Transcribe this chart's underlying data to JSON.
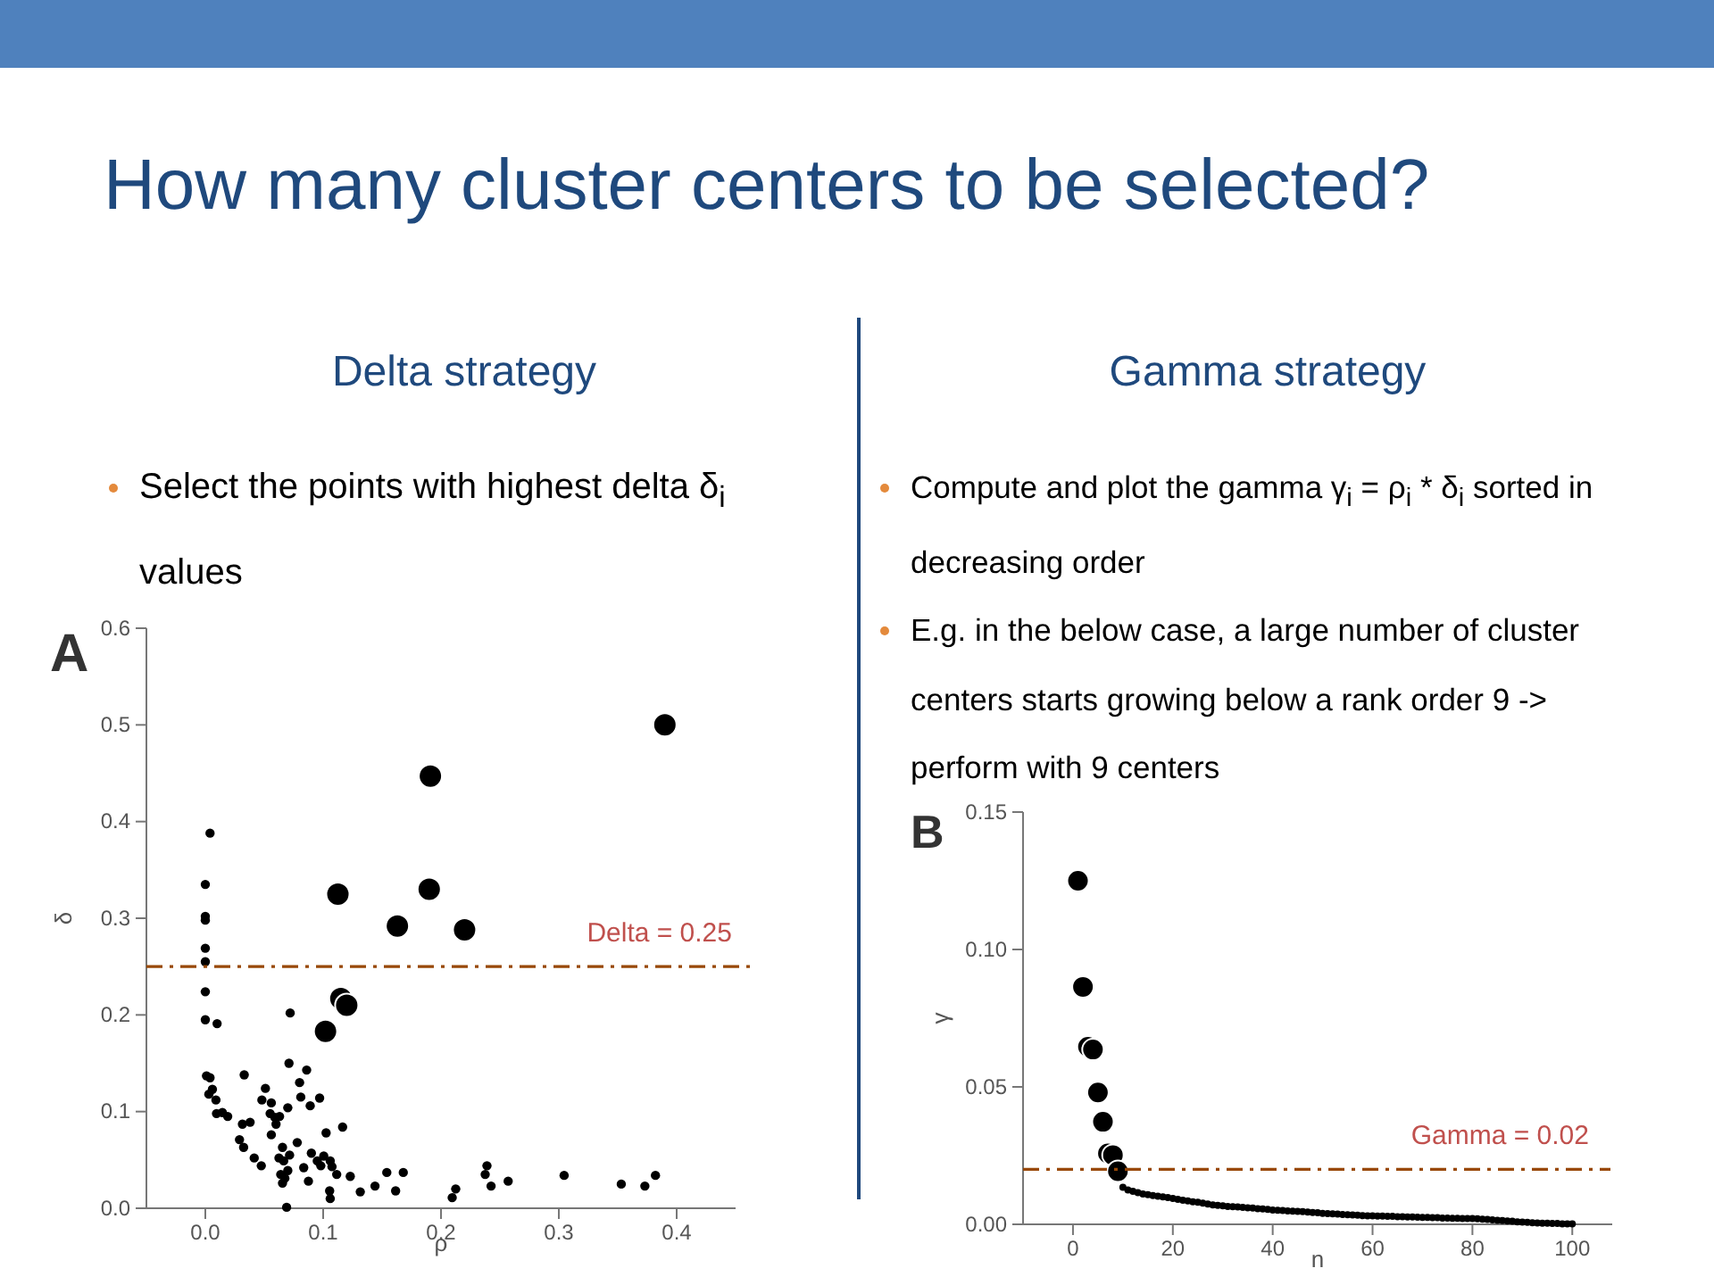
{
  "chart_data": [
    {
      "type": "scatter",
      "title": "How many cluster centers to be selected?",
      "subtitle": "Delta strategy",
      "xlabel": "ρ",
      "ylabel": "δ",
      "annotations": [
        "Select the points with highest delta δ$_{i}$ values",
        "A"
      ],
      "series": [
        {
          "color": "#000000",
          "x": [
            0.004,
            0,
            0,
            0,
            0,
            0,
            0,
            0,
            0.01,
            0.072,
            0.001,
            0.004,
            0.071,
            0.086,
            0.033,
            0.051,
            0.006,
            0.08,
            0.097,
            0.081,
            0.003,
            0.089,
            0.048,
            0.056,
            0.07,
            0.009,
            0.0095,
            0.0145,
            0.019,
            0.055,
            0.059,
            0.063,
            0.0315,
            0.038,
            0.1165,
            0.1025,
            0.056,
            0.029,
            0.06,
            0.0325,
            0.0655,
            0.078,
            0.0415,
            0.0475,
            0.0625,
            0.0665,
            0.0715,
            0.09,
            0.095,
            0.1005,
            0.106,
            0.0835,
            0.098,
            0.1075,
            0.1115,
            0.123,
            0.064,
            0.07,
            0.0675,
            0.0655,
            0.0875,
            0.1055,
            0.106,
            0.1315,
            0.144,
            0.154,
            0.168,
            0.1615,
            0.069,
            0.2095,
            0.2125,
            0.2375,
            0.239,
            0.2425,
            0.257,
            0.3045,
            0.353,
            0.373,
            0.382
          ],
          "values": [
            0.388,
            0.335,
            0.302,
            0.298,
            0.269,
            0.255,
            0.224,
            0.195,
            0.191,
            0.202,
            0.137,
            0.135,
            0.15,
            0.143,
            0.138,
            0.124,
            0.123,
            0.13,
            0.114,
            0.115,
            0.118,
            0.106,
            0.112,
            0.109,
            0.104,
            0.112,
            0.098,
            0.099,
            0.095,
            0.098,
            0.094,
            0.095,
            0.087,
            0.089,
            0.084,
            0.078,
            0.076,
            0.071,
            0.087,
            0.063,
            0.063,
            0.068,
            0.052,
            0.044,
            0.052,
            0.049,
            0.055,
            0.057,
            0.049,
            0.054,
            0.049,
            0.042,
            0.044,
            0.043,
            0.035,
            0.033,
            0.035,
            0.039,
            0.031,
            0.026,
            0.028,
            0.018,
            0.01,
            0.017,
            0.023,
            0.037,
            0.037,
            0.018,
            0.001,
            0.011,
            0.02,
            0.035,
            0.044,
            0.023,
            0.028,
            0.034,
            0.025,
            0.023,
            0.034
          ]
        },
        {
          "color": "#000000",
          "x": [
            0.39,
            0.191,
            0.1125,
            0.19,
            0.163,
            0.22,
            0.115,
            0.12,
            0.102
          ],
          "values": [
            0.5,
            0.447,
            0.325,
            0.33,
            0.292,
            0.288,
            0.217,
            0.21,
            0.183
          ]
        }
      ],
      "xlim": [
        -0.05,
        0.45
      ],
      "ylim": [
        0,
        0.6
      ],
      "xticks": [
        {
          "value": 0,
          "label": "0.0"
        },
        0.1,
        0.2,
        0.3,
        0.4
      ],
      "yticks": [
        {
          "value": 0,
          "label": "0.0"
        },
        0.1,
        0.2,
        0.3,
        0.4,
        0.5,
        0.6
      ],
      "ref_lines": [
        {
          "axis": "y",
          "value": 0.25,
          "label": "Delta = 0.25",
          "color": "#984807",
          "line_style": "dashdot"
        }
      ],
      "marker": "circle",
      "grid": false
    },
    {
      "type": "scatter",
      "subtitle": "Gamma strategy",
      "xlabel": "n",
      "ylabel": "γ",
      "annotations": [
        "Compute and plot the gamma γ$_{i}$ = ρ$_{i}$ * δ$_{i}$ sorted in decreasing order",
        "E.g. in the below case, a large number of cluster centers starts growing below a rank order 9 -> perform with 9 centers",
        "B"
      ],
      "series": [
        {
          "color": "#000000",
          "x": [
            10,
            11,
            12,
            13,
            14,
            15,
            16,
            17,
            18,
            19,
            20,
            21,
            22,
            23,
            24,
            25,
            26,
            27,
            28,
            29,
            30,
            31,
            32,
            33,
            34,
            35,
            36,
            37,
            38,
            39,
            40,
            41,
            42,
            43,
            44,
            45,
            46,
            47,
            48,
            49,
            50,
            51,
            52,
            53,
            54,
            55,
            56,
            57,
            58,
            59,
            60,
            61,
            62,
            63,
            64,
            65,
            66,
            67,
            68,
            69,
            70,
            71,
            72,
            73,
            74,
            75,
            76,
            77,
            78,
            79,
            80,
            81,
            82,
            83,
            84,
            85,
            86,
            87,
            88,
            89,
            90,
            91,
            92,
            93,
            94,
            95,
            96,
            97,
            98,
            99,
            100
          ],
          "values": [
            0.0135,
            0.0125,
            0.012,
            0.0115,
            0.011,
            0.0108,
            0.0105,
            0.0102,
            0.01,
            0.0097,
            0.0094,
            0.0091,
            0.0088,
            0.0085,
            0.0082,
            0.008,
            0.0077,
            0.0074,
            0.0071,
            0.0069,
            0.0067,
            0.0065,
            0.0064,
            0.0063,
            0.0062,
            0.006,
            0.0059,
            0.0057,
            0.0056,
            0.0054,
            0.0052,
            0.0051,
            0.005,
            0.0049,
            0.0048,
            0.0047,
            0.0046,
            0.0045,
            0.0043,
            0.0042,
            0.004,
            0.0039,
            0.0038,
            0.0037,
            0.0036,
            0.0035,
            0.0034,
            0.0033,
            0.0032,
            0.0031,
            0.0031,
            0.003,
            0.003,
            0.0029,
            0.0029,
            0.0028,
            0.0028,
            0.0027,
            0.0027,
            0.0026,
            0.0025,
            0.0025,
            0.0024,
            0.0024,
            0.0023,
            0.0023,
            0.0022,
            0.0022,
            0.0021,
            0.0021,
            0.0021,
            0.002,
            0.0019,
            0.0018,
            0.0016,
            0.0015,
            0.0014,
            0.0012,
            0.0011,
            0.0009,
            0.0008,
            0.0007,
            0.0006,
            0.0005,
            0.0004,
            0.0004,
            0.0003,
            0.0003,
            0.0002,
            0.0002,
            0.0002
          ]
        },
        {
          "color": "#000000",
          "x": [
            1,
            2,
            3,
            4,
            5,
            6,
            7,
            8,
            9
          ],
          "values": [
            0.125,
            0.0864,
            0.0646,
            0.0636,
            0.048,
            0.0373,
            0.0258,
            0.0252,
            0.0193
          ]
        }
      ],
      "xlim": [
        -10,
        108
      ],
      "ylim": [
        0,
        0.15
      ],
      "xticks": [
        0,
        20,
        40,
        60,
        80,
        100
      ],
      "yticks": [
        {
          "value": 0,
          "label": "0.00"
        },
        {
          "value": 0.05,
          "label": "0.05"
        },
        {
          "value": 0.1,
          "label": "0.10"
        },
        0.15
      ],
      "ref_lines": [
        {
          "axis": "y",
          "value": 0.02,
          "label": "Gamma = 0.02",
          "color": "#984807",
          "line_style": "dashdot"
        }
      ],
      "marker": "circle",
      "grid": false
    }
  ]
}
